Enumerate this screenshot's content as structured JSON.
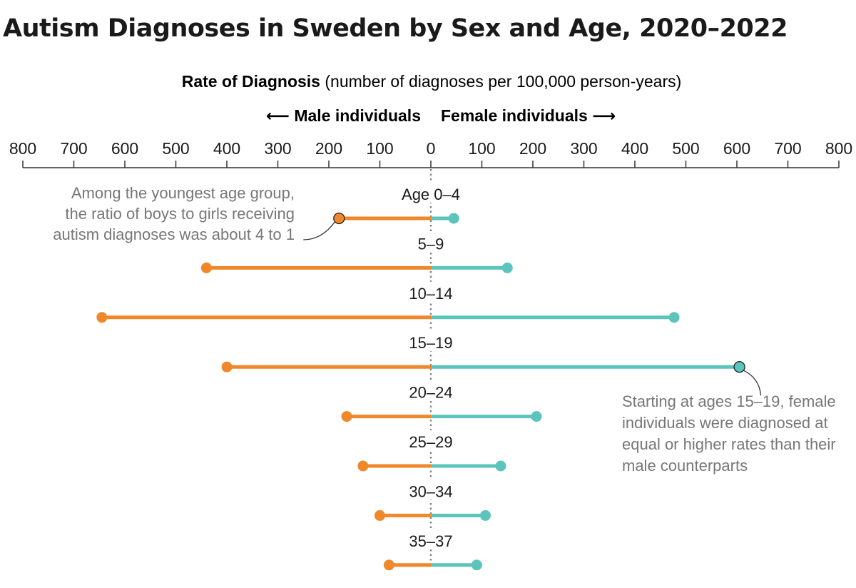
{
  "title": "Autism Diagnoses in Sweden by Sex and Age, 2020–2022",
  "colors": {
    "male": "#F0872A",
    "female": "#5BC4BC",
    "axis": "#333333",
    "note": "#777777"
  },
  "chart_data": {
    "type": "dot-range",
    "title": "Autism Diagnoses in Sweden by Sex and Age, 2020–2022",
    "axis_label_bold": "Rate of Diagnosis",
    "axis_label_rest": " (number of diagnoses per 100,000 person-years)",
    "legend": {
      "male": "⟵ Male individuals",
      "female": "Female individuals ⟶"
    },
    "xlim": [
      -800,
      800
    ],
    "ticks": [
      -800,
      -700,
      -600,
      -500,
      -400,
      -300,
      -200,
      -100,
      0,
      100,
      200,
      300,
      400,
      500,
      600,
      700,
      800
    ],
    "tick_labels": [
      "800",
      "700",
      "600",
      "500",
      "400",
      "300",
      "200",
      "100",
      "0",
      "100",
      "200",
      "300",
      "400",
      "500",
      "600",
      "700",
      "800"
    ],
    "categories": [
      "Age 0–4",
      "5–9",
      "10–14",
      "15–19",
      "20–24",
      "25–29",
      "30–34",
      "35–37"
    ],
    "series": [
      {
        "name": "Male individuals",
        "values": [
          180,
          440,
          645,
          400,
          165,
          133,
          100,
          82
        ]
      },
      {
        "name": "Female individuals",
        "values": [
          45,
          150,
          477,
          605,
          207,
          137,
          107,
          90
        ]
      }
    ],
    "annotations": [
      {
        "category": "Age 0–4",
        "series": "Male individuals",
        "lines": [
          "Among the youngest age group,",
          "the ratio of boys to girls receiving",
          "autism diagnoses was about 4 to 1"
        ]
      },
      {
        "category": "15–19",
        "series": "Female individuals",
        "lines": [
          "Starting at ages 15–19, female",
          "individuals were diagnosed at",
          "equal or higher rates than their",
          "male counterparts"
        ]
      }
    ]
  }
}
